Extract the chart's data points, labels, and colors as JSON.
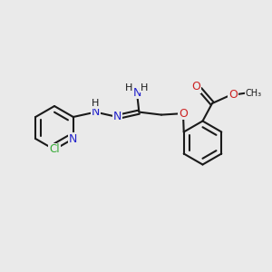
{
  "bg_color": "#eaeaea",
  "bond_color": "#1a1a1a",
  "n_color": "#2222cc",
  "o_color": "#cc2222",
  "cl_color": "#33aa33",
  "bond_width": 1.5,
  "figsize": [
    3.0,
    3.0
  ],
  "dpi": 100,
  "xlim": [
    0,
    10
  ],
  "ylim": [
    0,
    10
  ],
  "ring_r": 0.8,
  "inner_ratio": 0.72
}
